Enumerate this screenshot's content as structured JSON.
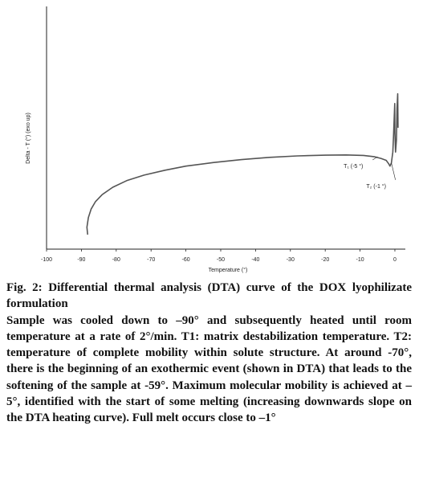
{
  "chart_data": {
    "type": "line",
    "title": "",
    "xlabel": "Temperature (°)",
    "ylabel": "Delta - T (°) (exo up)",
    "xlim": [
      -100,
      3
    ],
    "ylim": [
      0,
      1
    ],
    "x_ticks": [
      -100,
      -90,
      -80,
      -70,
      -60,
      -50,
      -40,
      -30,
      -20,
      -10,
      0
    ],
    "y_ticks_shown": false,
    "grid": false,
    "series": [
      {
        "name": "",
        "points": [
          [
            -88.2,
            0.06
          ],
          [
            -88.4,
            0.09
          ],
          [
            -88.0,
            0.13
          ],
          [
            -87.2,
            0.165
          ],
          [
            -86.0,
            0.195
          ],
          [
            -84.0,
            0.225
          ],
          [
            -81.0,
            0.255
          ],
          [
            -77.0,
            0.282
          ],
          [
            -72.0,
            0.305
          ],
          [
            -66.0,
            0.325
          ],
          [
            -60.0,
            0.342
          ],
          [
            -52.0,
            0.357
          ],
          [
            -44.0,
            0.369
          ],
          [
            -36.0,
            0.378
          ],
          [
            -28.0,
            0.384
          ],
          [
            -20.0,
            0.387
          ],
          [
            -14.0,
            0.388
          ],
          [
            -9.0,
            0.386
          ],
          [
            -6.0,
            0.381
          ],
          [
            -4.0,
            0.374
          ],
          [
            -2.5,
            0.366
          ],
          [
            -1.8,
            0.352
          ],
          [
            -1.4,
            0.342
          ],
          [
            -1.0,
            0.355
          ],
          [
            -0.6,
            0.4
          ],
          [
            -0.4,
            0.46
          ],
          [
            -0.2,
            0.54
          ],
          [
            -0.05,
            0.6
          ],
          [
            0.0,
            0.48
          ],
          [
            0.2,
            0.4
          ],
          [
            0.45,
            0.45
          ],
          [
            0.6,
            0.58
          ],
          [
            0.8,
            0.64
          ],
          [
            0.9,
            0.5
          ]
        ]
      }
    ],
    "annotations": [
      {
        "text": "T₁ (-5 °)",
        "x": -5,
        "y": 0.381
      },
      {
        "text": "T₂ (-1 °)",
        "x": -1,
        "y": 0.355
      }
    ]
  },
  "caption": {
    "title": "Fig. 2: Differential thermal analysis (DTA) curve of the DOX lyophilizate formulation",
    "body": "Sample was cooled down to –90° and subsequently heated until room temperature at a rate of 2°/min. T1: matrix destabilization temperature. T2: temperature of complete mobility within solute structure. At around -70°, there is the beginning of an exothermic event (shown in DTA) that leads to the softening of the sample at -59°. Maximum molecular mobility is achieved at –5°, identified with the start of some melting (increasing downwards slope on the DTA heating curve). Full melt occurs close to –1°"
  },
  "colors": {
    "curve": "#555555",
    "axis": "#222222",
    "text": "#111111"
  }
}
